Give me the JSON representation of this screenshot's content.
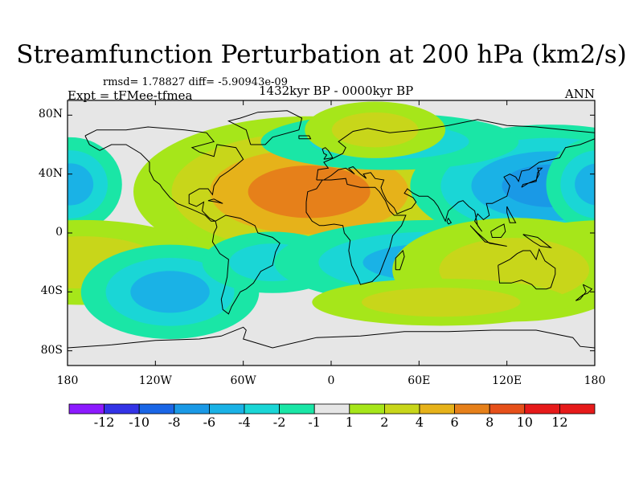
{
  "title": "Streamfunction Perturbation at 200 hPa (km2/s)",
  "stats": "rmsd= 1.78827  diff= -5.90943e-09",
  "experiment": "Expt = tFMee-tfmea",
  "period": "1432kyr BP - 0000kyr BP",
  "season": "ANN",
  "lat_ticks": [
    "80N",
    "40N",
    "0",
    "40S",
    "80S"
  ],
  "lon_ticks": [
    "180",
    "120W",
    "60W",
    "0",
    "60E",
    "120E",
    "180"
  ],
  "colorbar": {
    "labels": [
      "-12",
      "-10",
      "-8",
      "-6",
      "-4",
      "-2",
      "-1",
      "1",
      "2",
      "4",
      "6",
      "8",
      "10",
      "12"
    ],
    "colors": [
      "#8c1aff",
      "#3333e6",
      "#1a66e6",
      "#1a99e6",
      "#1ab2e6",
      "#1ad6d6",
      "#1ae6a6",
      "#e6e6e6",
      "#a6e61a",
      "#c8d61a",
      "#e6b21a",
      "#e6801a",
      "#e6501a",
      "#e61a1a"
    ]
  },
  "chart_data": {
    "type": "heatmap",
    "title": "Streamfunction Perturbation at 200 hPa (km2/s)",
    "units": "km2/s",
    "xlim": [
      -180,
      180
    ],
    "ylim": [
      -90,
      90
    ],
    "levels": [
      -12,
      -10,
      -8,
      -6,
      -4,
      -2,
      -1,
      1,
      2,
      4,
      6,
      8,
      10,
      12
    ],
    "regions": [
      {
        "name": "north-africa-high",
        "lon": -15,
        "lat": 28,
        "value": 7
      },
      {
        "name": "west-pacific-low",
        "lon": 150,
        "lat": 32,
        "value": -6
      },
      {
        "name": "north-pacific-low",
        "lon": -178,
        "lat": 33,
        "value": -4
      },
      {
        "name": "south-pacific-high",
        "lon": -170,
        "lat": -20,
        "value": 3
      },
      {
        "name": "southeast-pacific-low",
        "lon": -110,
        "lat": -40,
        "value": -4
      },
      {
        "name": "south-atlantic-low",
        "lon": -40,
        "lat": -20,
        "value": -3
      },
      {
        "name": "indian-ocean-low",
        "lon": 70,
        "lat": -20,
        "value": -4
      },
      {
        "name": "australia-high",
        "lon": 125,
        "lat": -25,
        "value": 3
      },
      {
        "name": "eurasia-low",
        "lon": 40,
        "lat": 62,
        "value": -2
      },
      {
        "name": "scandinavia-high",
        "lon": 30,
        "lat": 70,
        "value": 2
      },
      {
        "name": "southern-ocean-high",
        "lon": 75,
        "lat": -47,
        "value": 2
      }
    ]
  }
}
